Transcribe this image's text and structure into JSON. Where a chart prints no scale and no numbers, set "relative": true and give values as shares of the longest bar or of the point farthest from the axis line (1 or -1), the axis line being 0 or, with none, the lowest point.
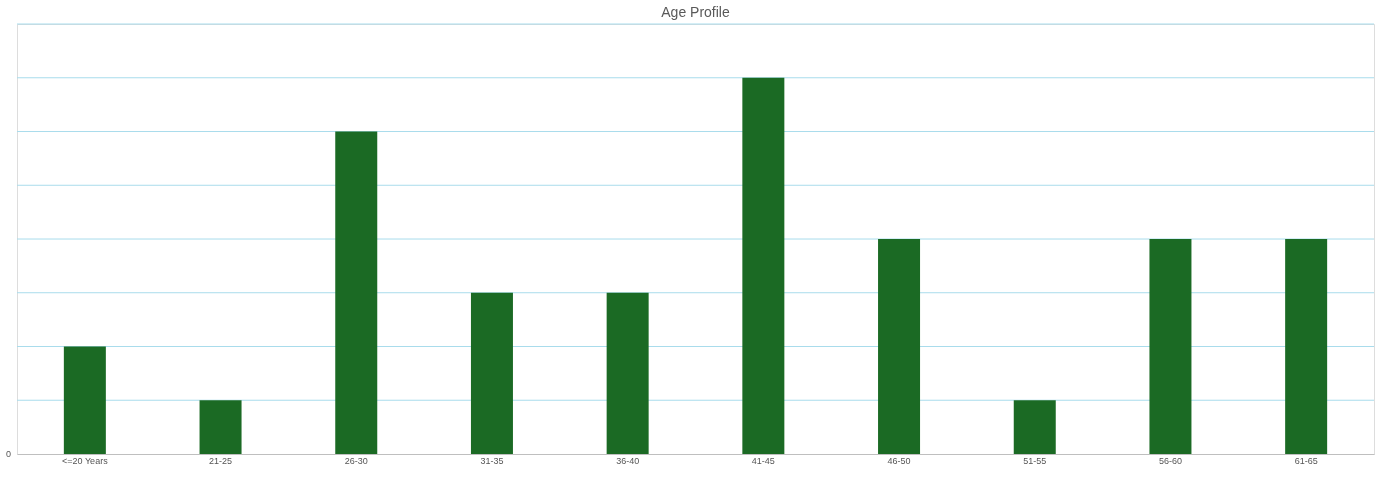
{
  "chart_data": {
    "type": "bar",
    "title": "Age Profile",
    "categories": [
      "<=20 Years",
      "21-25",
      "26-30",
      "31-35",
      "36-40",
      "41-45",
      "46-50",
      "51-55",
      "56-60",
      "61-65"
    ],
    "values": [
      0.2857,
      0.1429,
      0.8571,
      0.4286,
      0.4286,
      1,
      0.5714,
      0.1429,
      0.5714,
      0.5714
    ],
    "color": "#1b6a24",
    "relative": true,
    "annotations": [
      "0"
    ],
    "ref_lines": [
      {
        "axis": "y",
        "value": 0.1429,
        "color": "#a9dcec"
      },
      {
        "axis": "y",
        "value": 0.2857,
        "color": "#a9dcec"
      },
      {
        "axis": "y",
        "value": 0.4286,
        "color": "#a9dcec"
      },
      {
        "axis": "y",
        "value": 0.5714,
        "color": "#a9dcec"
      },
      {
        "axis": "y",
        "value": 0.7143,
        "color": "#a9dcec"
      },
      {
        "axis": "y",
        "value": 0.8571,
        "color": "#a9dcec"
      },
      {
        "axis": "y",
        "value": 1,
        "color": "#a9dcec"
      },
      {
        "axis": "y",
        "value": 1.1429,
        "color": "#a9dcec"
      }
    ]
  }
}
